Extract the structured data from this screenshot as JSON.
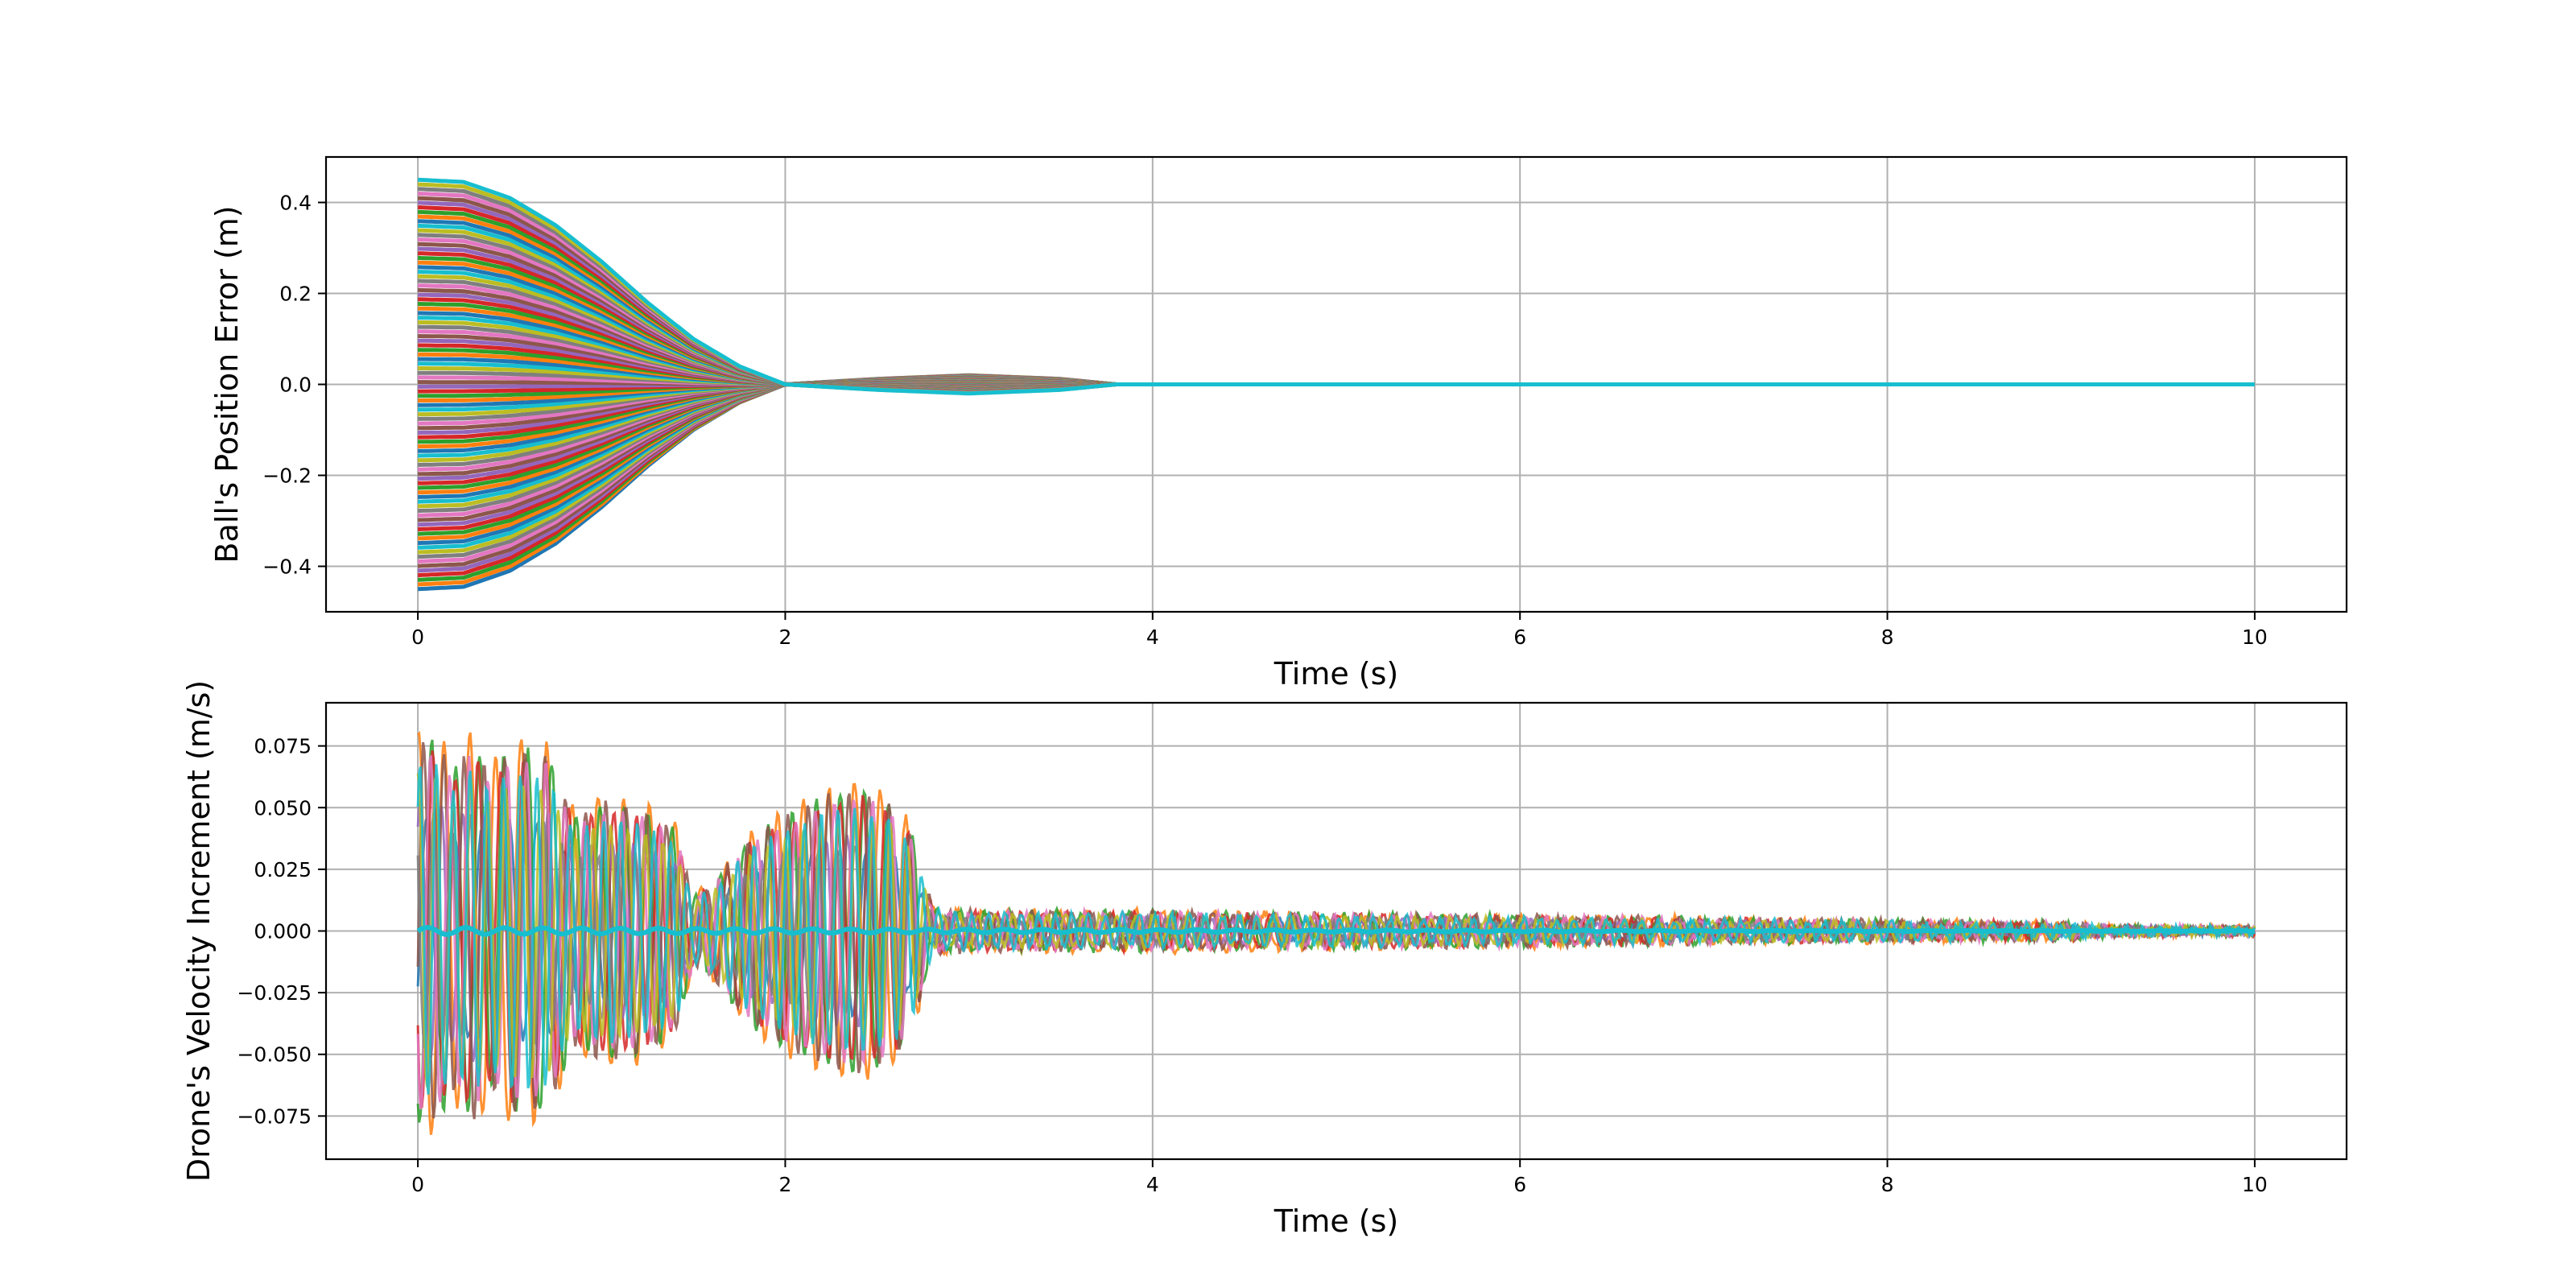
{
  "chart_data": [
    {
      "type": "line",
      "title": "",
      "xlabel": "Time (s)",
      "ylabel": "Ball's Position Error (m)",
      "xlim": [
        -0.5,
        10.5
      ],
      "ylim": [
        -0.5,
        0.5
      ],
      "x_ticks": [
        0,
        2,
        4,
        6,
        8,
        10
      ],
      "x_tick_labels": [
        "0",
        "2",
        "4",
        "6",
        "8",
        "10"
      ],
      "y_ticks": [
        0.4,
        0.2,
        0.0,
        -0.2,
        -0.4
      ],
      "y_tick_labels": [
        "0.4",
        "0.2",
        "0.0",
        "−0.2",
        "−0.4"
      ],
      "grid": true,
      "legend": "none",
      "description": "",
      "envelope": {
        "x": [
          0,
          0.25,
          0.5,
          0.75,
          1.0,
          1.25,
          1.5,
          1.75,
          2.0,
          2.5,
          3.0,
          3.5,
          3.8,
          4.5,
          5.0,
          10.0
        ],
        "amplitude": [
          0.45,
          0.445,
          0.41,
          0.35,
          0.27,
          0.18,
          0.1,
          0.04,
          0.0,
          -0.012,
          -0.02,
          -0.012,
          0.0,
          0.0,
          0.0,
          0.0
        ]
      },
      "series_count": 90
    },
    {
      "type": "line",
      "title": "",
      "xlabel": "Time (s)",
      "ylabel": "Drone's Velocity Increment (m/s)",
      "xlim": [
        -0.5,
        10.5
      ],
      "ylim": [
        -0.0925,
        0.0925
      ],
      "x_ticks": [
        0,
        2,
        4,
        6,
        8,
        10
      ],
      "x_tick_labels": [
        "0",
        "2",
        "4",
        "6",
        "8",
        "10"
      ],
      "y_ticks": [
        0.075,
        0.05,
        0.025,
        0.0,
        -0.025,
        -0.05,
        -0.075
      ],
      "y_tick_labels": [
        "0.075",
        "0.050",
        "0.025",
        "0.000",
        "−0.025",
        "−0.050",
        "−0.075"
      ],
      "grid": true,
      "legend": "none",
      "description": "",
      "envelope": {
        "x": [
          0,
          0.1,
          0.2,
          0.3,
          0.4,
          0.5,
          0.7,
          0.85,
          0.9,
          1.0,
          1.2,
          1.4,
          1.5,
          1.6,
          1.8,
          2.0,
          2.2,
          2.4,
          2.6,
          2.7,
          2.8,
          3.0,
          4.0,
          5.0,
          6.0,
          7.0,
          8.0,
          9.0,
          9.2,
          10.0
        ],
        "amplitude": [
          0.083,
          0.083,
          0.07,
          0.083,
          0.068,
          0.08,
          0.078,
          0.05,
          0.052,
          0.056,
          0.054,
          0.045,
          0.015,
          0.02,
          0.04,
          0.05,
          0.058,
          0.062,
          0.055,
          0.04,
          0.01,
          0.008,
          0.008,
          0.007,
          0.006,
          0.005,
          0.004,
          0.003,
          0.0015,
          0.001
        ]
      },
      "series_count": 10
    }
  ],
  "colors": [
    "#1f77b4",
    "#ff7f0e",
    "#2ca02c",
    "#d62728",
    "#9467bd",
    "#8c564b",
    "#e377c2",
    "#7f7f7f",
    "#bcbd22",
    "#17becf"
  ]
}
